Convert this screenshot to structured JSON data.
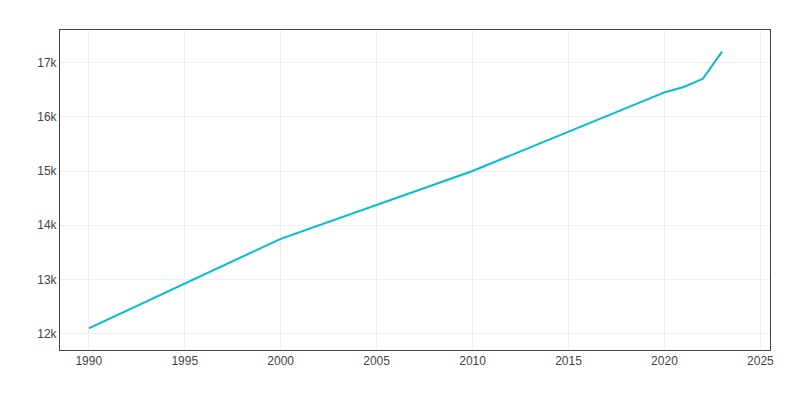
{
  "chart_data": {
    "type": "line",
    "x": [
      1990,
      2000,
      2010,
      2020,
      2021,
      2022,
      2023
    ],
    "values": [
      12100,
      13750,
      15000,
      16450,
      16550,
      16700,
      17200
    ],
    "color": "#00bcd4",
    "xlim": [
      1988.5,
      2025.5
    ],
    "ylim": [
      11700,
      17600
    ],
    "xticks": [
      1990,
      1995,
      2000,
      2005,
      2010,
      2015,
      2020,
      2025
    ],
    "yticks": [
      {
        "value": 12000,
        "label": "12k"
      },
      {
        "value": 13000,
        "label": "13k"
      },
      {
        "value": 14000,
        "label": "14k"
      },
      {
        "value": 15000,
        "label": "15k"
      },
      {
        "value": 16000,
        "label": "16k"
      },
      {
        "value": 17000,
        "label": "17k"
      }
    ],
    "grid": true
  }
}
